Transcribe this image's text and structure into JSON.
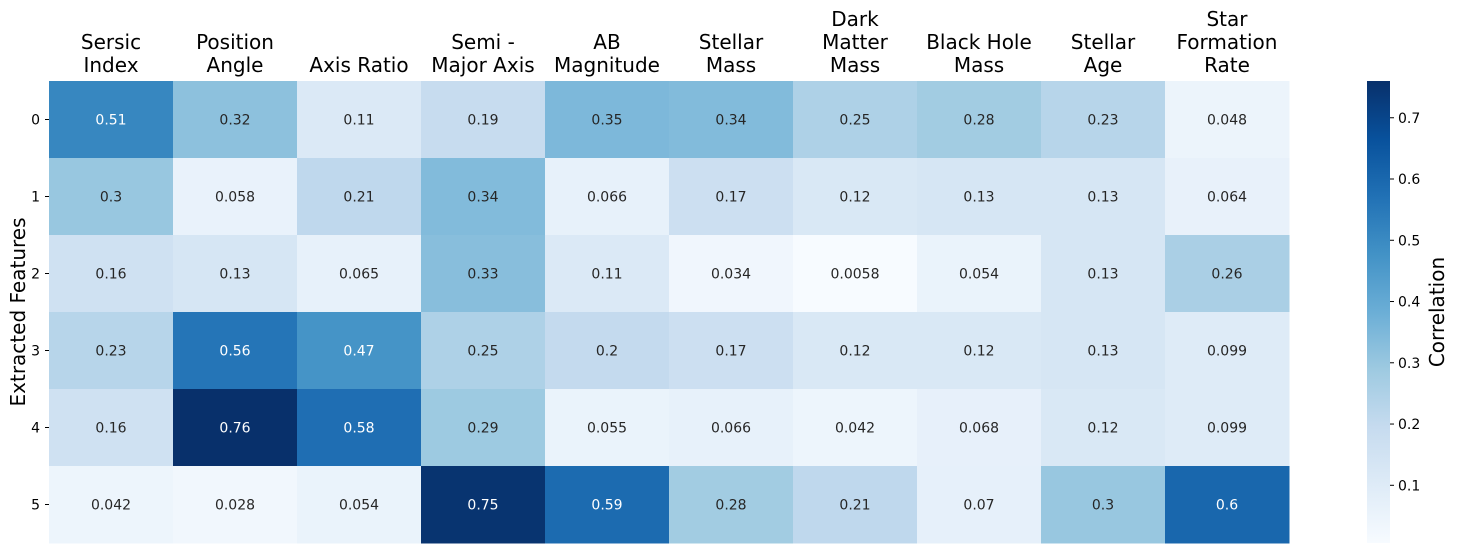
{
  "chart_data": {
    "type": "heatmap",
    "columns": [
      [
        "Sersic",
        "Index"
      ],
      [
        "Position",
        "Angle"
      ],
      [
        "Axis Ratio"
      ],
      [
        "Semi -",
        "Major Axis"
      ],
      [
        "AB",
        "Magnitude"
      ],
      [
        "Stellar",
        "Mass"
      ],
      [
        "Dark",
        "Matter",
        "Mass"
      ],
      [
        "Black Hole",
        "Mass"
      ],
      [
        "Stellar",
        "Age"
      ],
      [
        "Star",
        "Formation",
        "Rate"
      ]
    ],
    "rows": [
      "0",
      "1",
      "2",
      "3",
      "4",
      "5"
    ],
    "ylabel": "Extracted Features",
    "colorbar_label": "Correlation",
    "colorbar_ticks": [
      0.1,
      0.2,
      0.3,
      0.4,
      0.5,
      0.6,
      0.7
    ],
    "vmin": 0.0058,
    "vmax": 0.76,
    "colormap": "Blues",
    "values": [
      [
        0.51,
        0.32,
        0.11,
        0.19,
        0.35,
        0.34,
        0.25,
        0.28,
        0.23,
        0.048
      ],
      [
        0.3,
        0.058,
        0.21,
        0.34,
        0.066,
        0.17,
        0.12,
        0.13,
        0.13,
        0.064
      ],
      [
        0.16,
        0.13,
        0.065,
        0.33,
        0.11,
        0.034,
        0.0058,
        0.054,
        0.13,
        0.26
      ],
      [
        0.23,
        0.56,
        0.47,
        0.25,
        0.2,
        0.17,
        0.12,
        0.12,
        0.13,
        0.099
      ],
      [
        0.16,
        0.76,
        0.58,
        0.29,
        0.055,
        0.066,
        0.042,
        0.068,
        0.12,
        0.099
      ],
      [
        0.042,
        0.028,
        0.054,
        0.75,
        0.59,
        0.28,
        0.21,
        0.07,
        0.3,
        0.6
      ]
    ],
    "labels": [
      [
        "0.51",
        "0.32",
        "0.11",
        "0.19",
        "0.35",
        "0.34",
        "0.25",
        "0.28",
        "0.23",
        "0.048"
      ],
      [
        "0.3",
        "0.058",
        "0.21",
        "0.34",
        "0.066",
        "0.17",
        "0.12",
        "0.13",
        "0.13",
        "0.064"
      ],
      [
        "0.16",
        "0.13",
        "0.065",
        "0.33",
        "0.11",
        "0.034",
        "0.0058",
        "0.054",
        "0.13",
        "0.26"
      ],
      [
        "0.23",
        "0.56",
        "0.47",
        "0.25",
        "0.2",
        "0.17",
        "0.12",
        "0.12",
        "0.13",
        "0.099"
      ],
      [
        "0.16",
        "0.76",
        "0.58",
        "0.29",
        "0.055",
        "0.066",
        "0.042",
        "0.068",
        "0.12",
        "0.099"
      ],
      [
        "0.042",
        "0.028",
        "0.054",
        "0.75",
        "0.59",
        "0.28",
        "0.21",
        "0.07",
        "0.3",
        "0.6"
      ]
    ]
  }
}
